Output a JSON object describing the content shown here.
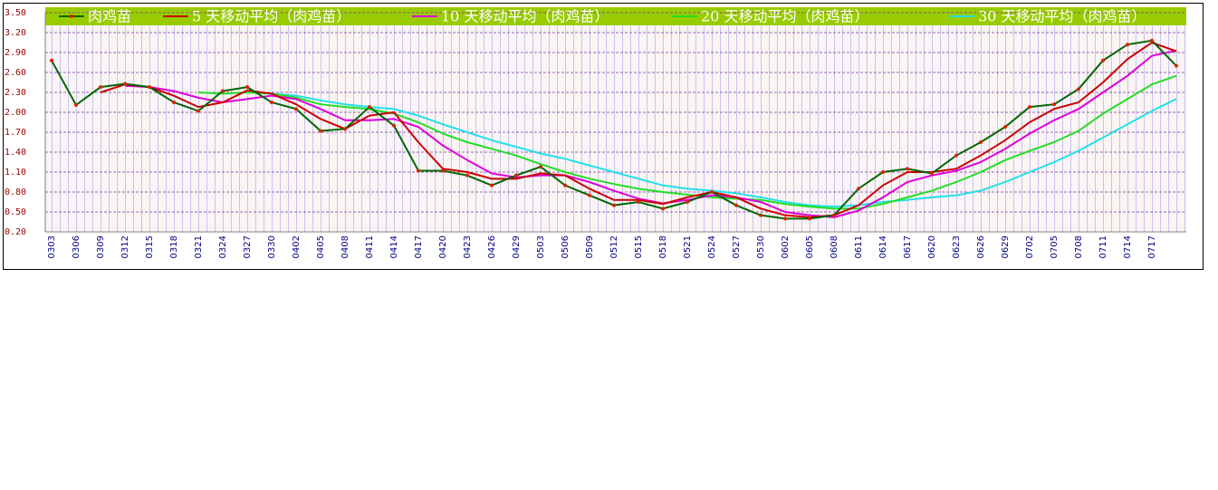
{
  "chart_data": {
    "type": "line",
    "categories": [
      "0303",
      "0306",
      "0309",
      "0312",
      "0315",
      "0318",
      "0321",
      "0324",
      "0327",
      "0330",
      "0402",
      "0405",
      "0408",
      "0411",
      "0414",
      "0417",
      "0420",
      "0423",
      "0426",
      "0429",
      "0503",
      "0506",
      "0509",
      "0512",
      "0515",
      "0518",
      "0521",
      "0524",
      "0527",
      "0530",
      "0602",
      "0605",
      "0608",
      "0611",
      "0614",
      "0617",
      "0620",
      "0623",
      "0626",
      "0629",
      "0702",
      "0705",
      "0708",
      "0711",
      "0714",
      "0717",
      null
    ],
    "series": [
      {
        "name": "肉鸡苗",
        "color": "#006600",
        "marker_color": "#dd2200",
        "values": [
          2.78,
          2.11,
          2.38,
          2.43,
          2.38,
          2.15,
          2.02,
          2.32,
          2.38,
          2.15,
          2.05,
          1.72,
          1.75,
          2.08,
          1.8,
          1.12,
          1.12,
          1.05,
          0.9,
          1.05,
          1.18,
          0.9,
          0.75,
          0.6,
          0.65,
          0.55,
          0.65,
          0.8,
          0.6,
          0.45,
          0.4,
          0.4,
          0.45,
          0.85,
          1.1,
          1.15,
          1.08,
          1.35,
          1.55,
          1.78,
          2.08,
          2.12,
          2.35,
          2.78,
          3.02,
          3.08,
          2.7
        ]
      },
      {
        "name": "5 天移动平均（肉鸡苗）",
        "color": "#cc0000",
        "values": [
          null,
          null,
          2.3,
          2.42,
          2.38,
          2.25,
          2.08,
          2.15,
          2.33,
          2.28,
          2.12,
          1.9,
          1.75,
          1.95,
          2.0,
          1.55,
          1.15,
          1.1,
          1.0,
          1.0,
          1.08,
          1.05,
          0.85,
          0.68,
          0.68,
          0.62,
          0.72,
          0.8,
          0.72,
          0.55,
          0.45,
          0.42,
          0.45,
          0.6,
          0.9,
          1.1,
          1.1,
          1.15,
          1.35,
          1.58,
          1.85,
          2.05,
          2.15,
          2.45,
          2.8,
          3.05,
          2.92
        ]
      },
      {
        "name": "10 天移动平均（肉鸡苗）",
        "color": "#dd00dd",
        "values": [
          null,
          null,
          null,
          2.4,
          2.38,
          2.32,
          2.22,
          2.15,
          2.2,
          2.25,
          2.2,
          2.05,
          1.88,
          1.88,
          1.9,
          1.78,
          1.5,
          1.28,
          1.08,
          1.02,
          1.05,
          1.05,
          0.95,
          0.82,
          0.7,
          0.63,
          0.68,
          0.75,
          0.72,
          0.65,
          0.5,
          0.45,
          0.42,
          0.52,
          0.72,
          0.95,
          1.05,
          1.12,
          1.25,
          1.45,
          1.68,
          1.88,
          2.05,
          2.3,
          2.55,
          2.85,
          2.93
        ]
      },
      {
        "name": "20 天移动平均（肉鸡苗）",
        "color": "#22dd22",
        "values": [
          null,
          null,
          null,
          null,
          null,
          null,
          2.3,
          2.28,
          2.3,
          2.28,
          2.22,
          2.12,
          2.08,
          2.05,
          1.98,
          1.85,
          1.68,
          1.55,
          1.45,
          1.35,
          1.22,
          1.1,
          1.0,
          0.92,
          0.85,
          0.8,
          0.76,
          0.72,
          0.7,
          0.68,
          0.62,
          0.58,
          0.55,
          0.55,
          0.62,
          0.72,
          0.82,
          0.95,
          1.1,
          1.28,
          1.42,
          1.55,
          1.72,
          1.98,
          2.2,
          2.42,
          2.55
        ]
      },
      {
        "name": "30 天移动平均（肉鸡苗）",
        "color": "#22e0e8",
        "values": [
          null,
          null,
          null,
          null,
          null,
          null,
          null,
          null,
          null,
          2.28,
          2.25,
          2.18,
          2.12,
          2.08,
          2.05,
          1.95,
          1.82,
          1.7,
          1.58,
          1.48,
          1.38,
          1.3,
          1.2,
          1.1,
          1.0,
          0.9,
          0.85,
          0.82,
          0.78,
          0.72,
          0.65,
          0.6,
          0.58,
          0.6,
          0.65,
          0.68,
          0.72,
          0.75,
          0.82,
          0.95,
          1.1,
          1.25,
          1.42,
          1.62,
          1.82,
          2.02,
          2.2
        ]
      }
    ],
    "ylim": [
      0.2,
      3.5
    ],
    "yticks": [
      {
        "value": 0.2,
        "label": "0.20"
      },
      {
        "value": 0.5,
        "label": "0.50"
      },
      {
        "value": 0.8,
        "label": "0.80"
      },
      {
        "value": 1.1,
        "label": "1.10"
      },
      {
        "value": 1.4,
        "label": "1.40"
      },
      {
        "value": 1.7,
        "label": "1.70"
      },
      {
        "value": 2.0,
        "label": "2.00"
      },
      {
        "value": 2.3,
        "label": "2.30"
      },
      {
        "value": 2.6,
        "label": "2.60"
      },
      {
        "value": 2.9,
        "label": "2.90"
      },
      {
        "value": 3.2,
        "label": "3.20"
      },
      {
        "value": 3.5,
        "label": "3.50"
      }
    ],
    "grid": true,
    "legend": "top"
  }
}
